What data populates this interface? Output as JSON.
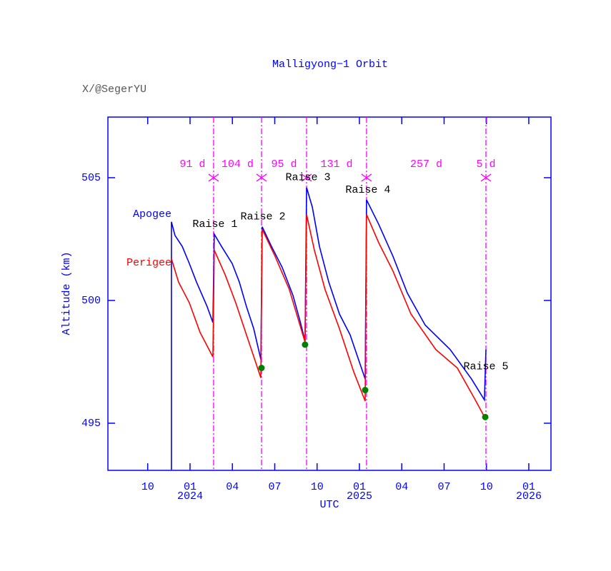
{
  "chart_data": {
    "type": "line",
    "title": "Malligyong−1 Orbit",
    "watermark": "X/@SegerYU",
    "x_label": "UTC",
    "y_label": "Altitude (km)",
    "xlim": [
      2023.515,
      2026.131
    ],
    "ylim": [
      493.08,
      507.47
    ],
    "yticks": [
      495,
      500,
      505
    ],
    "xticks": [
      {
        "value": 2023.75,
        "label": "10"
      },
      {
        "value": 2024.0,
        "label": "01"
      },
      {
        "value": 2024.25,
        "label": "04"
      },
      {
        "value": 2024.5,
        "label": "07"
      },
      {
        "value": 2024.75,
        "label": "10"
      },
      {
        "value": 2025.0,
        "label": "01"
      },
      {
        "value": 2025.25,
        "label": "04"
      },
      {
        "value": 2025.5,
        "label": "07"
      },
      {
        "value": 2025.75,
        "label": "10"
      },
      {
        "value": 2026.0,
        "label": "01"
      }
    ],
    "year_ticks": [
      2024,
      2025,
      2026
    ],
    "axis_color": "#0000ff",
    "series": [
      {
        "name": "Apogee",
        "color": "#0000ff",
        "x": [
          2023.89,
          2023.89,
          2023.911,
          2023.954,
          2023.996,
          2024.038,
          2024.101,
          2024.135,
          2024.143,
          2024.186,
          2024.249,
          2024.291,
          2024.333,
          2024.376,
          2024.418,
          2024.426,
          2024.481,
          2024.544,
          2024.608,
          2024.65,
          2024.679,
          2024.688,
          2024.722,
          2024.764,
          2024.819,
          2024.882,
          2024.945,
          2025.034,
          2025.042,
          2025.114,
          2025.198,
          2025.283,
          2025.388,
          2025.536,
          2025.662,
          2025.738,
          2025.747
        ],
        "values": [
          493.1,
          503.2,
          502.65,
          502.2,
          501.5,
          500.75,
          499.75,
          499.1,
          502.7,
          502.2,
          501.5,
          500.75,
          499.75,
          498.85,
          497.6,
          503.0,
          502.2,
          501.35,
          500.2,
          499.15,
          498.35,
          504.6,
          503.8,
          502.2,
          500.75,
          499.45,
          498.6,
          496.8,
          504.1,
          503.1,
          501.8,
          500.3,
          499.0,
          498.0,
          496.8,
          495.95,
          498.0
        ]
      },
      {
        "name": "Perigee",
        "color": "#ff0000",
        "x": [
          2023.89,
          2023.932,
          2023.996,
          2024.059,
          2024.135,
          2024.143,
          2024.207,
          2024.27,
          2024.333,
          2024.418,
          2024.426,
          2024.502,
          2024.586,
          2024.679,
          2024.688,
          2024.734,
          2024.797,
          2024.882,
          2024.966,
          2025.034,
          2025.042,
          2025.114,
          2025.198,
          2025.304,
          2025.451,
          2025.578,
          2025.684,
          2025.743
        ],
        "values": [
          501.7,
          500.75,
          499.9,
          498.7,
          497.7,
          502.05,
          501.05,
          499.9,
          498.6,
          496.85,
          502.9,
          501.8,
          500.45,
          498.3,
          503.5,
          502.05,
          500.45,
          498.85,
          497.1,
          495.9,
          503.5,
          502.35,
          501.2,
          499.45,
          498.0,
          497.25,
          495.95,
          495.2
        ]
      }
    ],
    "markers": {
      "color": "#008000",
      "x": [
        2024.422,
        2024.679,
        2025.034,
        2025.743
      ],
      "values": [
        497.25,
        498.2,
        496.35,
        495.25
      ]
    },
    "events": {
      "color": "#ff00ff",
      "x": [
        2024.139,
        2024.422,
        2024.688,
        2025.042,
        2025.747
      ],
      "labels": [
        "Raise 1",
        "Raise 2",
        "Raise 3",
        "Raise 4",
        "Raise 5"
      ]
    },
    "intervals": [
      "91 d",
      "104 d",
      "95 d",
      "131 d",
      "257 d",
      "5 d"
    ]
  }
}
